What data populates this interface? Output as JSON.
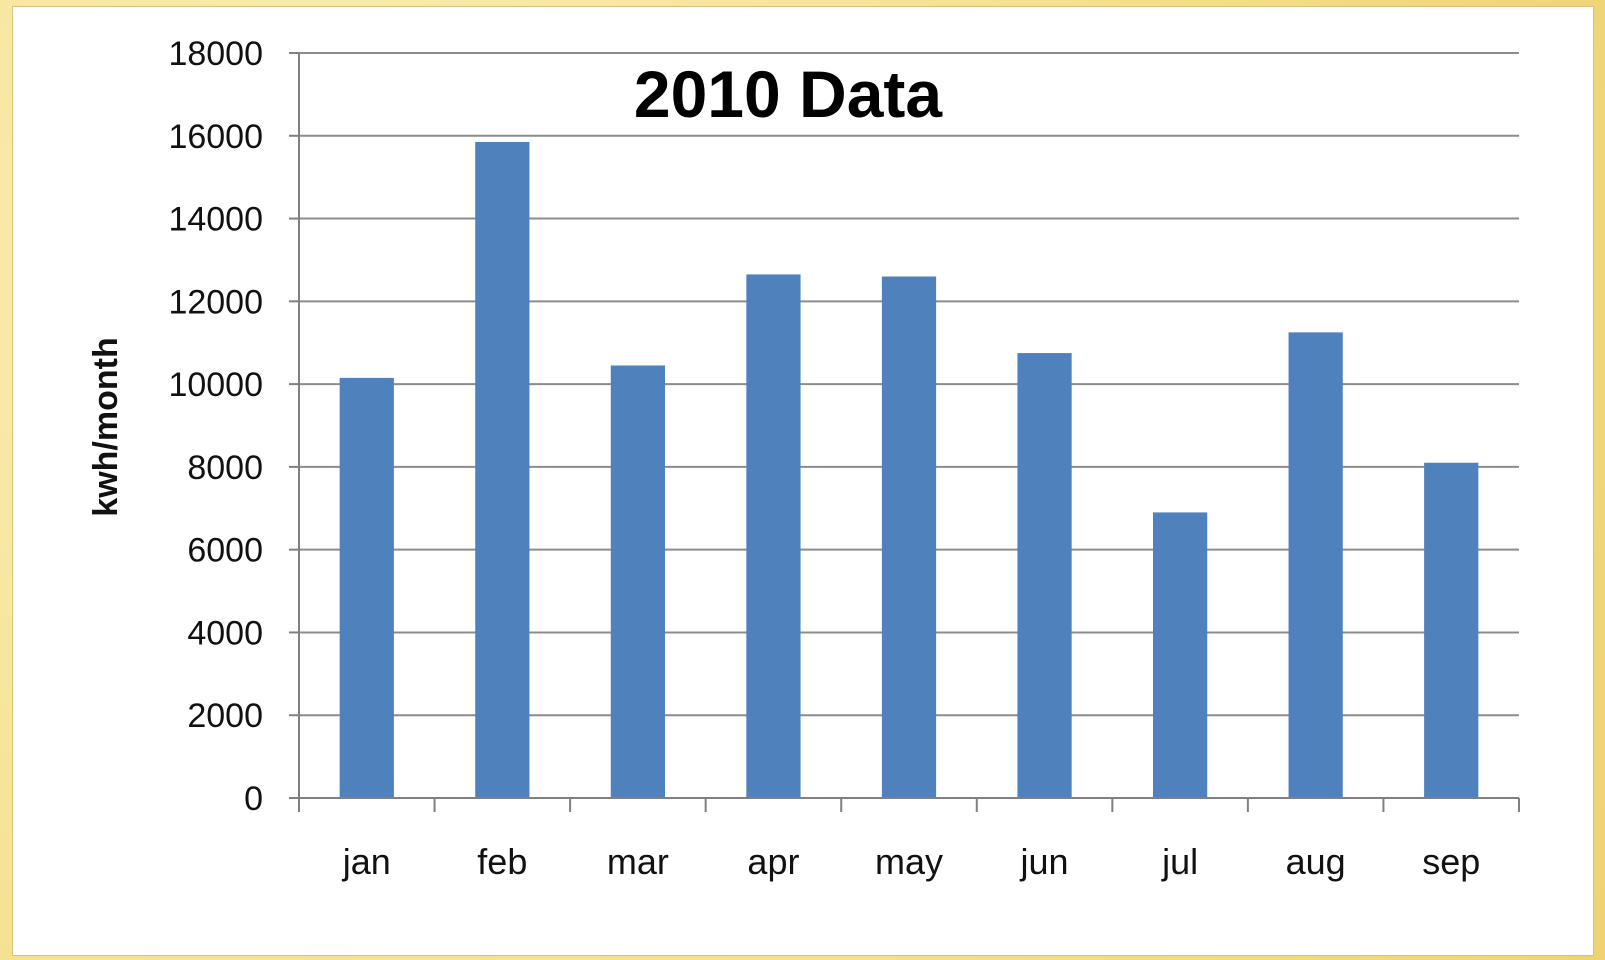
{
  "chart_data": {
    "type": "bar",
    "title": "2010 Data",
    "xlabel": "",
    "ylabel": "kwh/month",
    "categories": [
      "jan",
      "feb",
      "mar",
      "apr",
      "may",
      "jun",
      "jul",
      "aug",
      "sep"
    ],
    "series": [
      {
        "values": [
          10150,
          15850,
          10450,
          12650,
          12600,
          10750,
          6900,
          11250,
          8100
        ]
      }
    ],
    "ylim": [
      0,
      18000
    ],
    "yticks": [
      0,
      2000,
      4000,
      6000,
      8000,
      10000,
      12000,
      14000,
      16000,
      18000
    ],
    "grid": true,
    "legend": "none",
    "colors": {
      "bar": "#4f81bd",
      "grid": "#8c8c8c",
      "axis": "#808080"
    }
  }
}
